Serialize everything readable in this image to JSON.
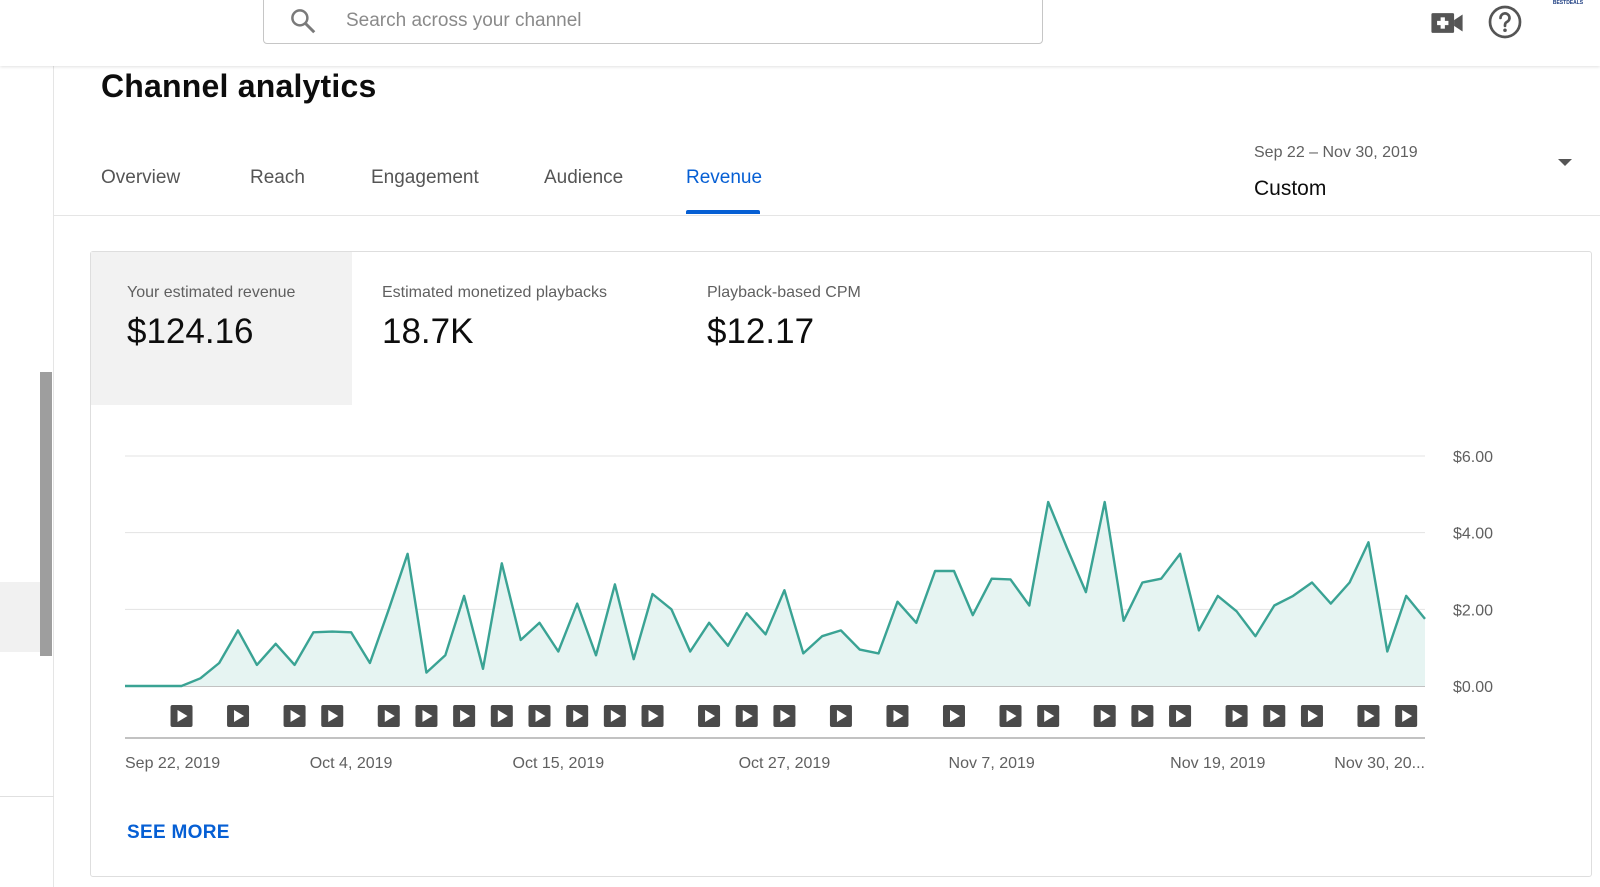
{
  "search": {
    "placeholder": "Search across your channel"
  },
  "header": {
    "avatar_text": "BESTDEALS",
    "icons": [
      "search-icon",
      "create-video-icon",
      "help-icon"
    ]
  },
  "page": {
    "title": "Channel analytics"
  },
  "tabs": [
    {
      "label": "Overview"
    },
    {
      "label": "Reach"
    },
    {
      "label": "Engagement"
    },
    {
      "label": "Audience"
    },
    {
      "label": "Revenue",
      "active": true
    }
  ],
  "daterange": {
    "range": "Sep 22 – Nov 30, 2019",
    "preset": "Custom"
  },
  "metrics": [
    {
      "label": "Your estimated revenue",
      "value": "$124.16",
      "active": true
    },
    {
      "label": "Estimated monetized playbacks",
      "value": "18.7K"
    },
    {
      "label": "Playback-based CPM",
      "value": "$12.17"
    }
  ],
  "see_more": "SEE MORE",
  "colors": {
    "accent": "#065fd4",
    "series": "#3aa394",
    "series_fill": "#e6f4f2"
  },
  "chart_data": {
    "type": "area",
    "series": [
      {
        "values": [
          0,
          0,
          0,
          0,
          0.2,
          0.6,
          1.45,
          0.55,
          1.1,
          0.55,
          1.4,
          1.42,
          1.4,
          0.6,
          2.0,
          3.45,
          0.35,
          0.8,
          2.35,
          0.45,
          3.2,
          1.2,
          1.65,
          0.9,
          2.15,
          0.8,
          2.65,
          0.7,
          2.4,
          2.0,
          0.9,
          1.65,
          1.05,
          1.9,
          1.35,
          2.5,
          0.85,
          1.3,
          1.45,
          0.95,
          0.85,
          2.2,
          1.65,
          3.0,
          3.0,
          1.85,
          2.8,
          2.78,
          2.1,
          4.8,
          3.6,
          2.45,
          4.8,
          1.7,
          2.7,
          2.8,
          3.45,
          1.45,
          2.35,
          1.95,
          1.3,
          2.1,
          2.35,
          2.7,
          2.15,
          2.7,
          3.75,
          0.9,
          2.35,
          1.75
        ]
      }
    ],
    "x_tick_labels": [
      "Sep 22, 2019",
      "Oct 4, 2019",
      "Oct 15, 2019",
      "Oct 27, 2019",
      "Nov 7, 2019",
      "Nov 19, 2019",
      "Nov 30, 20..."
    ],
    "y_tick_labels": [
      "$0.00",
      "$2.00",
      "$4.00",
      "$6.00"
    ],
    "ylim": [
      0,
      6
    ],
    "grid": true,
    "video_markers_days": [
      3,
      6,
      9,
      11,
      14,
      16,
      18,
      20,
      22,
      24,
      26,
      28,
      31,
      33,
      35,
      38,
      41,
      44,
      47,
      49,
      52,
      54,
      56,
      59,
      61,
      63,
      66,
      68
    ]
  }
}
